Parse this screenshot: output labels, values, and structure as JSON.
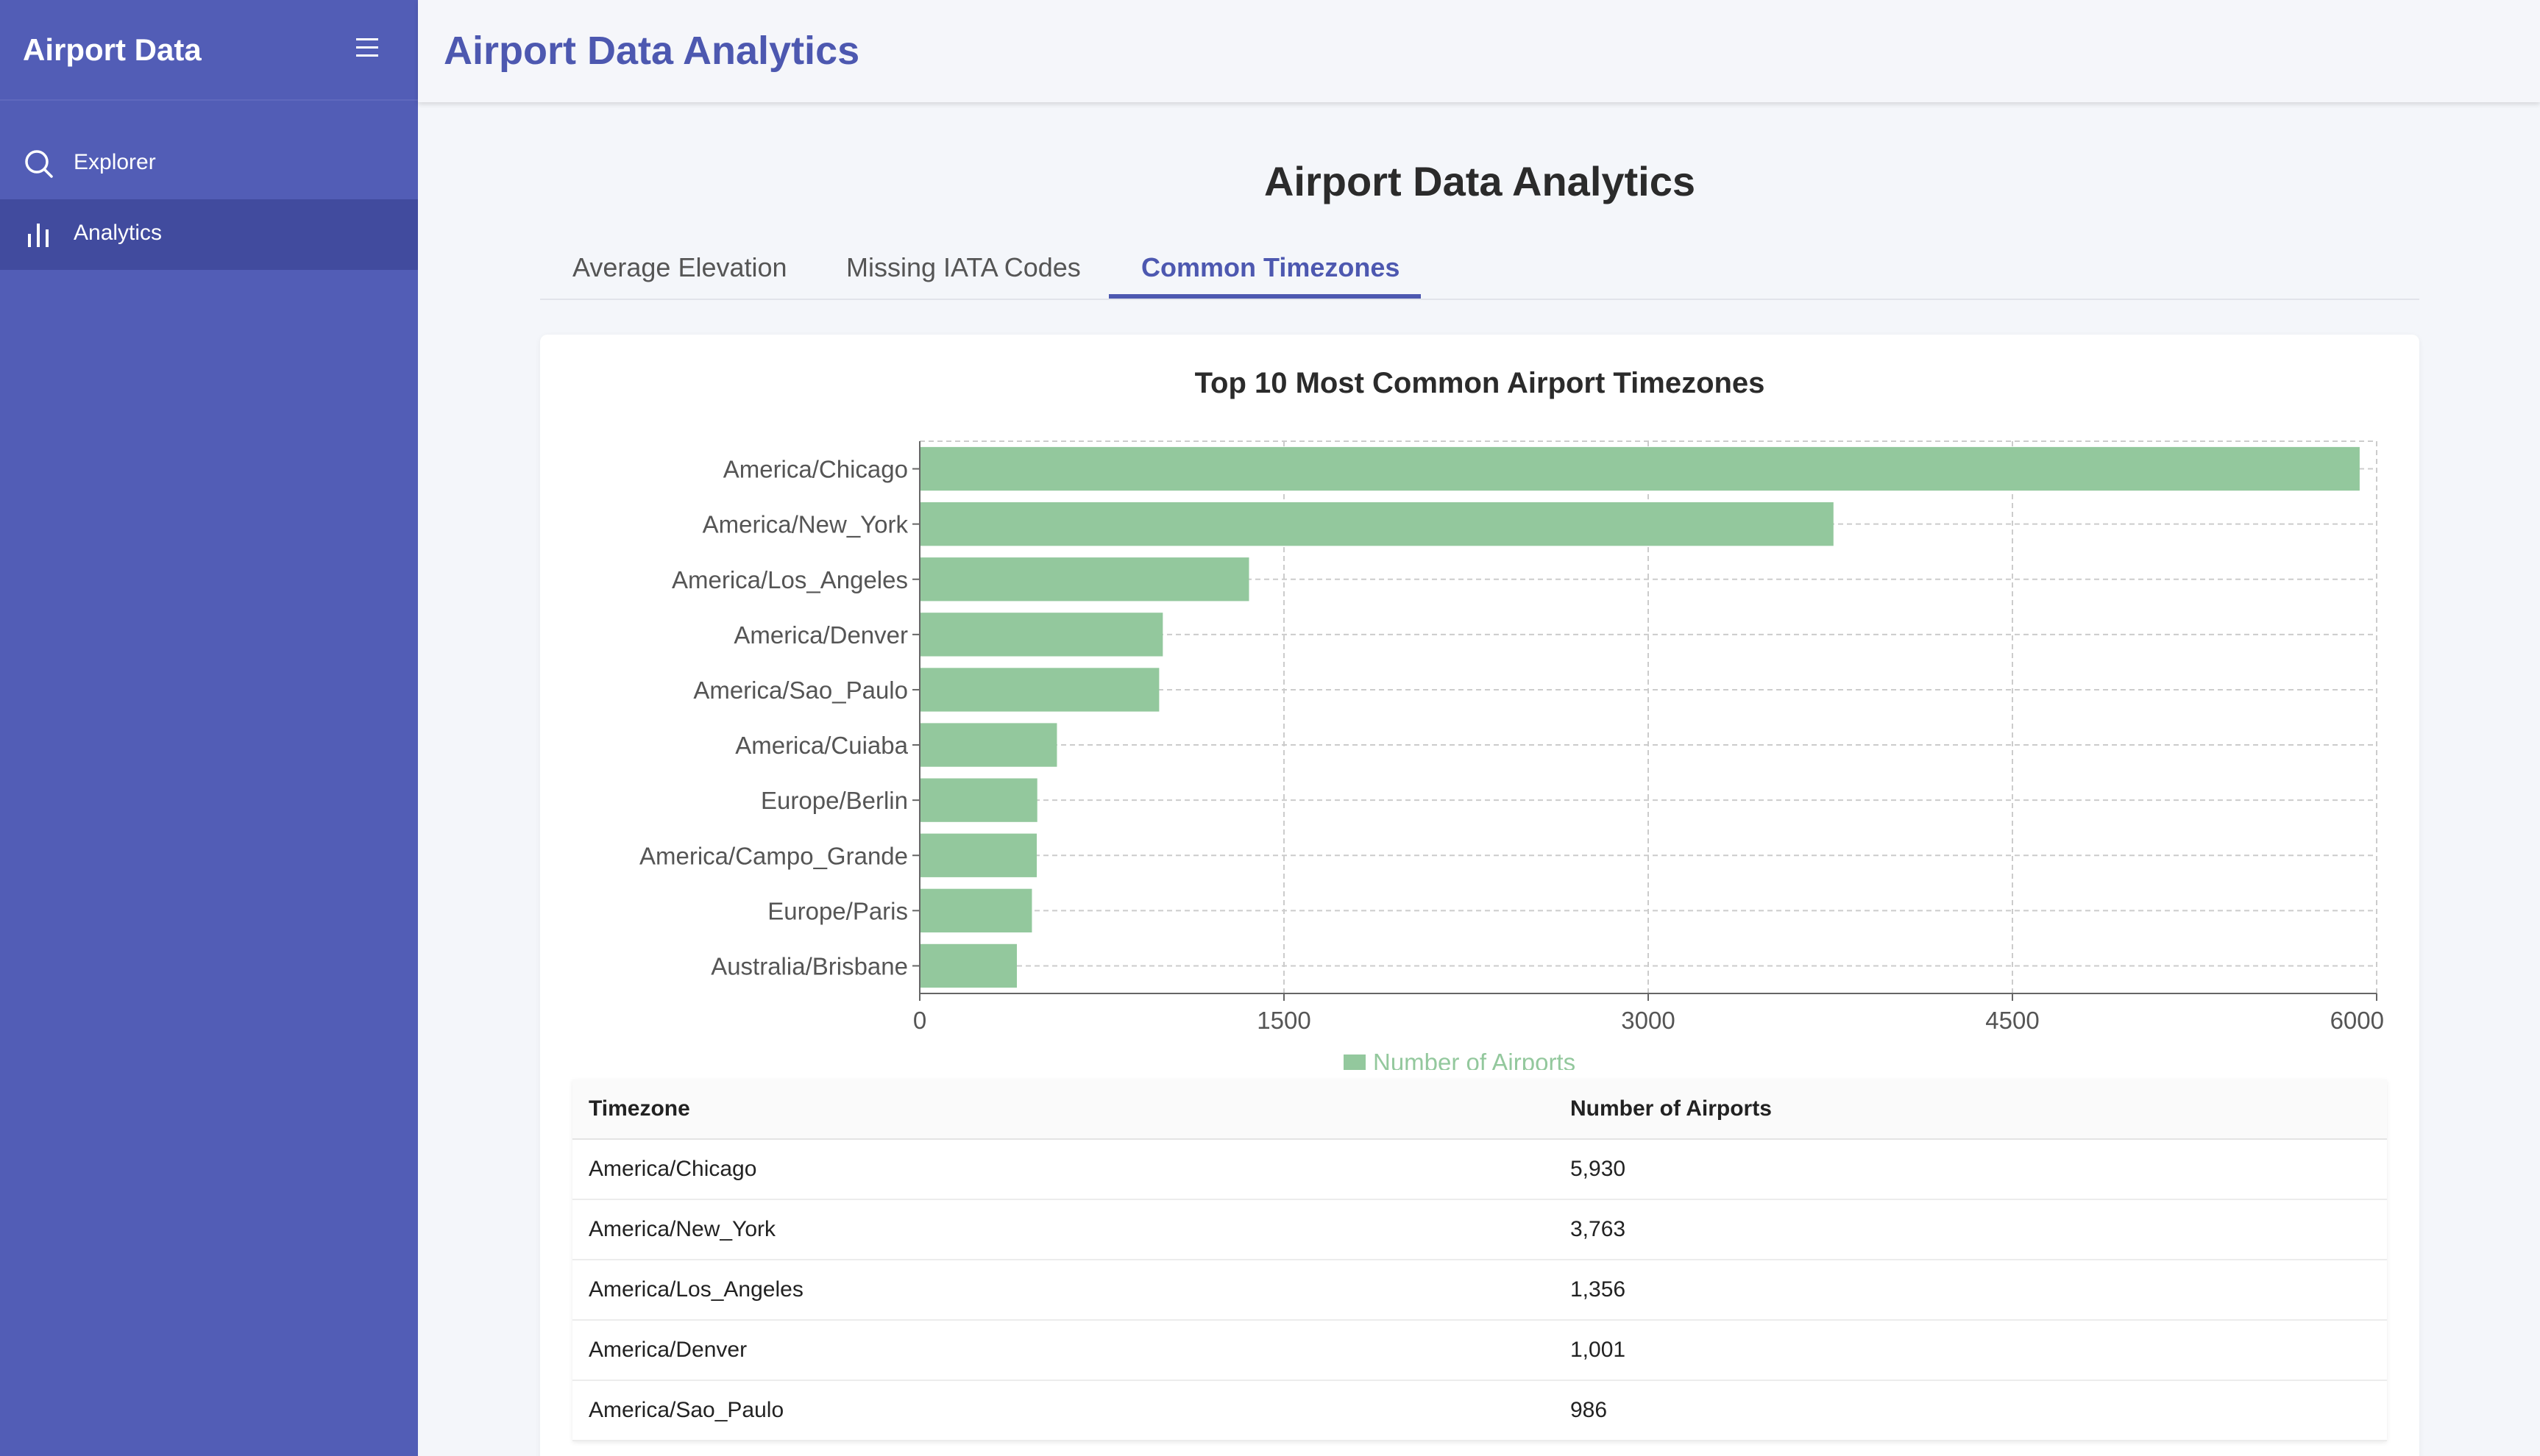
{
  "sidebar": {
    "brand": "Airport Data",
    "menu_icon": "menu-icon",
    "items": [
      {
        "label": "Explorer",
        "icon": "search-icon",
        "active": false
      },
      {
        "label": "Analytics",
        "icon": "bar-chart-icon",
        "active": true
      }
    ],
    "color": "#525db6",
    "active_color": "#414b9e"
  },
  "topbar": {
    "title": "Airport Data Analytics"
  },
  "main": {
    "heading": "Airport Data Analytics",
    "tabs": [
      {
        "label": "Average Elevation",
        "active": false
      },
      {
        "label": "Missing IATA Codes",
        "active": false
      },
      {
        "label": "Common Timezones",
        "active": true
      }
    ],
    "accent": "#4d58b0"
  },
  "chart_data": {
    "type": "bar",
    "orientation": "horizontal",
    "title": "Top 10 Most Common Airport Timezones",
    "categories": [
      "America/Chicago",
      "America/New_York",
      "America/Los_Angeles",
      "America/Denver",
      "America/Sao_Paulo",
      "America/Cuiaba",
      "Europe/Berlin",
      "America/Campo_Grande",
      "Europe/Paris",
      "Australia/Brisbane"
    ],
    "series": [
      {
        "name": "Number of Airports",
        "color": "#93c89d",
        "values": [
          5930,
          3763,
          1356,
          1001,
          986,
          565,
          484,
          482,
          462,
          400
        ]
      }
    ],
    "xlim": [
      0,
      6000
    ],
    "xticks": [
      "0",
      "1500",
      "3000",
      "4500",
      "6000"
    ],
    "grid": true,
    "legend": "bottom"
  },
  "table": {
    "headers": [
      "Timezone",
      "Number of Airports"
    ],
    "rows": [
      [
        "America/Chicago",
        "5,930"
      ],
      [
        "America/New_York",
        "3,763"
      ],
      [
        "America/Los_Angeles",
        "1,356"
      ],
      [
        "America/Denver",
        "1,001"
      ],
      [
        "America/Sao_Paulo",
        "986"
      ]
    ]
  }
}
